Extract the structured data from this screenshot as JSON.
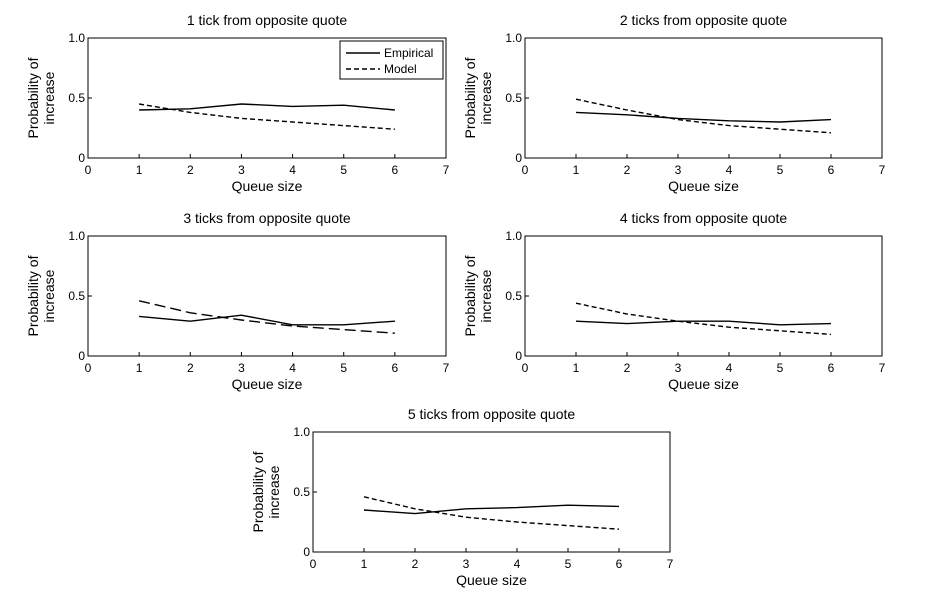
{
  "chart_data": [
    {
      "type": "line",
      "title": "1 tick from opposite quote",
      "xlabel": "Queue size",
      "ylabel": [
        "Probability of",
        "increase"
      ],
      "xlim": [
        0,
        7
      ],
      "ylim": [
        0,
        1.0
      ],
      "xticks": [
        "0",
        "1",
        "2",
        "3",
        "4",
        "5",
        "6",
        "7"
      ],
      "yticks": [
        "0",
        "0.5",
        "1.0"
      ],
      "grid": false,
      "legend": "top-right",
      "x": [
        1,
        2,
        3,
        4,
        5,
        6
      ],
      "series": [
        {
          "name": "Empirical",
          "style": "solid",
          "values": [
            0.4,
            0.41,
            0.45,
            0.43,
            0.44,
            0.4
          ]
        },
        {
          "name": "Model",
          "style": "dashed",
          "values": [
            0.45,
            0.38,
            0.33,
            0.3,
            0.27,
            0.24
          ]
        }
      ]
    },
    {
      "type": "line",
      "title": "2 ticks from opposite quote",
      "xlabel": "Queue size",
      "ylabel": [
        "Probability of",
        "increase"
      ],
      "xlim": [
        0,
        7
      ],
      "ylim": [
        0,
        1.0
      ],
      "xticks": [
        "0",
        "1",
        "2",
        "3",
        "4",
        "5",
        "6",
        "7"
      ],
      "yticks": [
        "0",
        "0.5",
        "1.0"
      ],
      "grid": false,
      "x": [
        1,
        2,
        3,
        4,
        5,
        6
      ],
      "series": [
        {
          "style": "solid",
          "values": [
            0.38,
            0.36,
            0.33,
            0.31,
            0.3,
            0.32
          ]
        },
        {
          "style": "dashed",
          "values": [
            0.49,
            0.4,
            0.32,
            0.27,
            0.24,
            0.21
          ]
        }
      ]
    },
    {
      "type": "line",
      "title": "3 ticks from opposite quote",
      "xlabel": "Queue size",
      "ylabel": [
        "Probability of",
        "increase"
      ],
      "xlim": [
        0,
        7
      ],
      "ylim": [
        0,
        1.0
      ],
      "xticks": [
        "0",
        "1",
        "2",
        "3",
        "4",
        "5",
        "6",
        "7"
      ],
      "yticks": [
        "0",
        "0.5",
        "1.0"
      ],
      "grid": false,
      "x": [
        1,
        2,
        3,
        4,
        5,
        6
      ],
      "series": [
        {
          "style": "solid",
          "values": [
            0.33,
            0.29,
            0.34,
            0.26,
            0.26,
            0.29
          ]
        },
        {
          "style": "dashed-long",
          "values": [
            0.46,
            0.36,
            0.3,
            0.25,
            0.22,
            0.19
          ]
        }
      ]
    },
    {
      "type": "line",
      "title": "4 ticks from opposite quote",
      "xlabel": "Queue size",
      "ylabel": [
        "Probability of",
        "increase"
      ],
      "xlim": [
        0,
        7
      ],
      "ylim": [
        0,
        1.0
      ],
      "xticks": [
        "0",
        "1",
        "2",
        "3",
        "4",
        "5",
        "6",
        "7"
      ],
      "yticks": [
        "0",
        "0.5",
        "1.0"
      ],
      "grid": false,
      "x": [
        1,
        2,
        3,
        4,
        5,
        6
      ],
      "series": [
        {
          "style": "solid",
          "values": [
            0.29,
            0.27,
            0.29,
            0.29,
            0.26,
            0.27
          ]
        },
        {
          "style": "dashed",
          "values": [
            0.44,
            0.35,
            0.29,
            0.24,
            0.21,
            0.18
          ]
        }
      ]
    },
    {
      "type": "line",
      "title": "5 ticks from opposite quote",
      "xlabel": "Queue size",
      "ylabel": [
        "Probability of",
        "increase"
      ],
      "xlim": [
        0,
        7
      ],
      "ylim": [
        0,
        1.0
      ],
      "xticks": [
        "0",
        "1",
        "2",
        "3",
        "4",
        "5",
        "6",
        "7"
      ],
      "yticks": [
        "0",
        "0.5",
        "1.0"
      ],
      "grid": false,
      "x": [
        1,
        2,
        3,
        4,
        5,
        6
      ],
      "series": [
        {
          "style": "solid",
          "values": [
            0.35,
            0.32,
            0.36,
            0.37,
            0.39,
            0.38
          ]
        },
        {
          "style": "dashed",
          "values": [
            0.46,
            0.36,
            0.29,
            0.25,
            0.22,
            0.19
          ]
        }
      ]
    }
  ],
  "colors": {
    "line": "#000000",
    "axis": "#000000",
    "background": "#ffffff"
  }
}
